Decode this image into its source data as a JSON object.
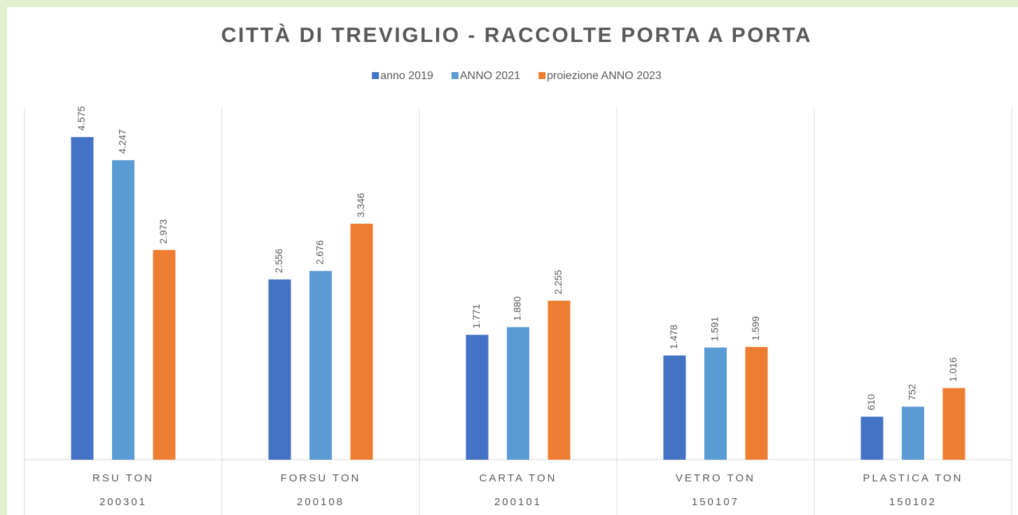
{
  "chart_data": {
    "type": "bar",
    "title": "CITTÀ DI TREVIGLIO - RACCOLTE PORTA A PORTA",
    "categories": [
      "RSU TON",
      "FORSU TON",
      "CARTA TON",
      "VETRO TON",
      "PLASTICA TON"
    ],
    "subcategories": [
      "200301",
      "200108",
      "200101",
      "150107",
      "150102"
    ],
    "series": [
      {
        "name": "anno 2019",
        "color": "#4472c4",
        "values": [
          4575,
          2556,
          1771,
          1478,
          610
        ],
        "value_labels": [
          "4.575",
          "2.556",
          "1.771",
          "1.478",
          "610"
        ]
      },
      {
        "name": "ANNO 2021",
        "color": "#5b9bd5",
        "values": [
          4247,
          2676,
          1880,
          1591,
          752
        ],
        "value_labels": [
          "4.247",
          "2.676",
          "1.880",
          "1.591",
          "752"
        ]
      },
      {
        "name": "proiezione ANNO 2023",
        "color": "#ed7d31",
        "values": [
          2973,
          3346,
          2255,
          1599,
          1016
        ],
        "value_labels": [
          "2.973",
          "3.346",
          "2.255",
          "1.599",
          "1.016"
        ]
      }
    ],
    "ylim": [
      0,
      5000
    ],
    "legend": "top"
  }
}
